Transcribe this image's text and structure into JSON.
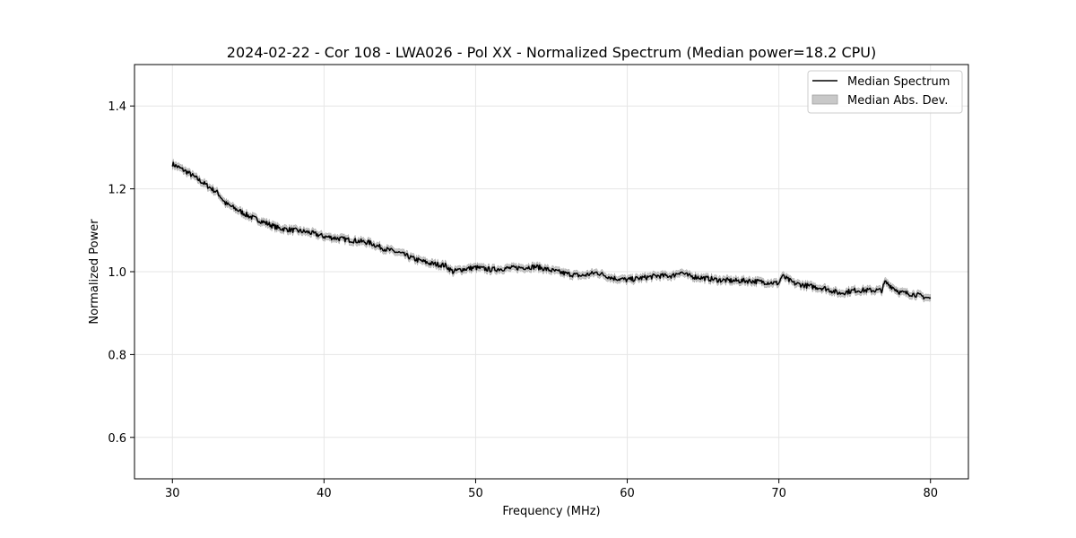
{
  "chart_data": {
    "type": "line",
    "title": "2024-02-22 - Cor 108 - LWA026 - Pol XX - Normalized Spectrum (Median power=18.2 CPU)",
    "xlabel": "Frequency (MHz)",
    "ylabel": "Normalized Power",
    "xlim": [
      27.5,
      82.5
    ],
    "ylim": [
      0.5,
      1.5
    ],
    "xticks": [
      30,
      40,
      50,
      60,
      70,
      80
    ],
    "yticks": [
      0.6,
      0.8,
      1.0,
      1.2,
      1.4
    ],
    "xtick_labels": [
      "30",
      "40",
      "50",
      "60",
      "70",
      "80"
    ],
    "ytick_labels": [
      "0.6",
      "0.8",
      "1.0",
      "1.2",
      "1.4"
    ],
    "grid": true,
    "legend_position": "top-right",
    "series": [
      {
        "name": "Median Spectrum",
        "kind": "line",
        "color": "#000000",
        "x": [
          30,
          31,
          32,
          33,
          33.5,
          34,
          35,
          36,
          37,
          38,
          39,
          40,
          41,
          42,
          43,
          44,
          45,
          46,
          47,
          48,
          48.5,
          49,
          50,
          51,
          52,
          53,
          54,
          55,
          56,
          57,
          58,
          59,
          60,
          61,
          62,
          63,
          63.5,
          64,
          65,
          66,
          67,
          68,
          69,
          70,
          70.2,
          71,
          72,
          73,
          74,
          75,
          76,
          76.8,
          77,
          78,
          79,
          80
        ],
        "y": [
          1.26,
          1.24,
          1.215,
          1.19,
          1.165,
          1.155,
          1.135,
          1.12,
          1.105,
          1.1,
          1.095,
          1.085,
          1.08,
          1.075,
          1.07,
          1.055,
          1.045,
          1.03,
          1.02,
          1.015,
          1.0,
          1.005,
          1.01,
          1.005,
          1.008,
          1.01,
          1.012,
          1.003,
          0.995,
          0.99,
          0.998,
          0.985,
          0.98,
          0.985,
          0.99,
          0.99,
          1.0,
          0.99,
          0.985,
          0.98,
          0.978,
          0.978,
          0.975,
          0.972,
          0.99,
          0.972,
          0.965,
          0.96,
          0.948,
          0.955,
          0.955,
          0.955,
          0.975,
          0.95,
          0.945,
          0.935
        ]
      },
      {
        "name": "Median Abs. Dev.",
        "kind": "band",
        "color": "#c8c8c8",
        "half_width": 0.008
      }
    ]
  }
}
